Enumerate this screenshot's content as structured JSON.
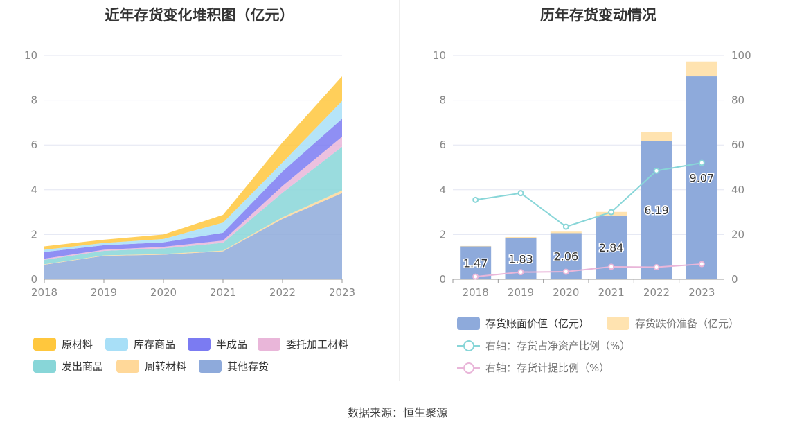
{
  "left_chart": {
    "title": "近年存货变化堆积图（亿元）"
  },
  "right_chart": {
    "title": "历年存货变动情况"
  },
  "source": "数据来源：恒生聚源",
  "chart_data": [
    {
      "type": "area",
      "title": "近年存货变化堆积图（亿元）",
      "stacked": true,
      "x": [
        "2018",
        "2019",
        "2020",
        "2021",
        "2022",
        "2023"
      ],
      "ylim": [
        0,
        10
      ],
      "yticks": [
        "0",
        "2",
        "4",
        "6",
        "8",
        "10"
      ],
      "grid": true,
      "legend_position": "bottom",
      "series": [
        {
          "name": "其他存货",
          "color": "#8eaadb",
          "values": [
            0.65,
            1.05,
            1.1,
            1.25,
            2.7,
            3.85
          ]
        },
        {
          "name": "周转材料",
          "color": "#ffd899",
          "values": [
            0.02,
            0.02,
            0.03,
            0.03,
            0.07,
            0.12
          ]
        },
        {
          "name": "发出商品",
          "color": "#88d6d8",
          "values": [
            0.2,
            0.2,
            0.25,
            0.35,
            1.1,
            1.95
          ]
        },
        {
          "name": "委托加工材料",
          "color": "#e9b6d9",
          "values": [
            0.05,
            0.05,
            0.07,
            0.1,
            0.3,
            0.45
          ]
        },
        {
          "name": "半成品",
          "color": "#7b7bf2",
          "values": [
            0.3,
            0.2,
            0.2,
            0.35,
            0.65,
            0.8
          ]
        },
        {
          "name": "库存商品",
          "color": "#a8dff7",
          "values": [
            0.1,
            0.1,
            0.15,
            0.45,
            0.4,
            0.8
          ]
        },
        {
          "name": "原材料",
          "color": "#ffc73d",
          "values": [
            0.15,
            0.15,
            0.2,
            0.35,
            0.9,
            1.1
          ]
        }
      ]
    },
    {
      "type": "bar",
      "title": "历年存货变动情况",
      "categories": [
        "2018",
        "2019",
        "2020",
        "2021",
        "2022",
        "2023"
      ],
      "ylim": [
        0,
        10
      ],
      "yticks": [
        "0",
        "2",
        "4",
        "6",
        "8",
        "10"
      ],
      "y2lim": [
        0,
        100
      ],
      "y2ticks": [
        "0",
        "20",
        "40",
        "60",
        "80",
        "100"
      ],
      "grid": true,
      "legend_position": "bottom",
      "series": [
        {
          "name": "存货账面价值（亿元）",
          "kind": "bar",
          "stack": "a",
          "color": "#8eaadb",
          "values": [
            1.47,
            1.83,
            2.06,
            2.84,
            6.19,
            9.07
          ],
          "labels": [
            "1.47",
            "1.83",
            "2.06",
            "2.84",
            "6.19",
            "9.07"
          ]
        },
        {
          "name": "存货跌价准备（亿元）",
          "kind": "bar",
          "stack": "a",
          "color": "#ffe3b0",
          "values": [
            0.02,
            0.06,
            0.07,
            0.17,
            0.38,
            0.66
          ]
        },
        {
          "name": "右轴：存货占净资产比例（%）",
          "kind": "line",
          "axis": "right",
          "color": "#88d6d8",
          "values": [
            35.5,
            38.5,
            23.5,
            30,
            48.5,
            52
          ]
        },
        {
          "name": "右轴：存货计提比例（%）",
          "kind": "line",
          "axis": "right",
          "color": "#e9b6d9",
          "values": [
            1.2,
            3.2,
            3.4,
            5.6,
            5.4,
            6.8
          ]
        }
      ]
    }
  ]
}
